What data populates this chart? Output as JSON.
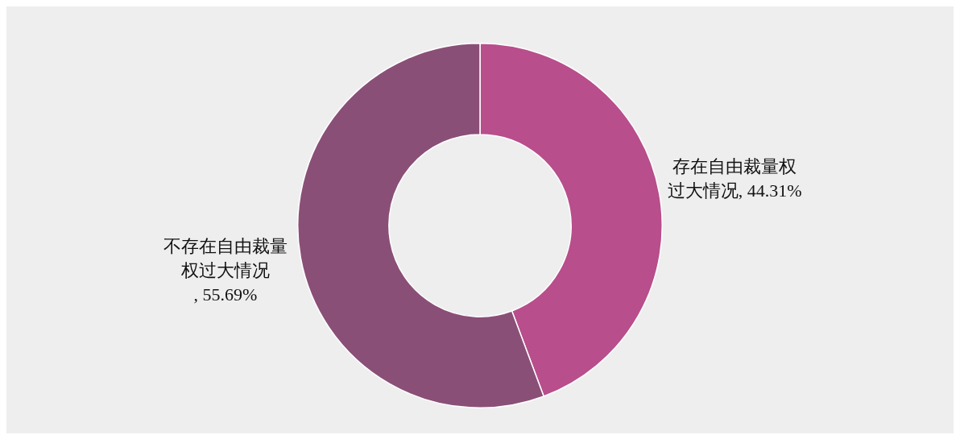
{
  "chart_data": {
    "type": "donut",
    "categories": [
      "存在自由裁量权过大情况",
      "不存在自由裁量权过大情况"
    ],
    "values": [
      44.31,
      55.69
    ],
    "value_labels": [
      ", 44.31%",
      ", 55.69%"
    ],
    "colors": [
      "#b84e8c",
      "#8a4f77"
    ],
    "legend": false
  }
}
